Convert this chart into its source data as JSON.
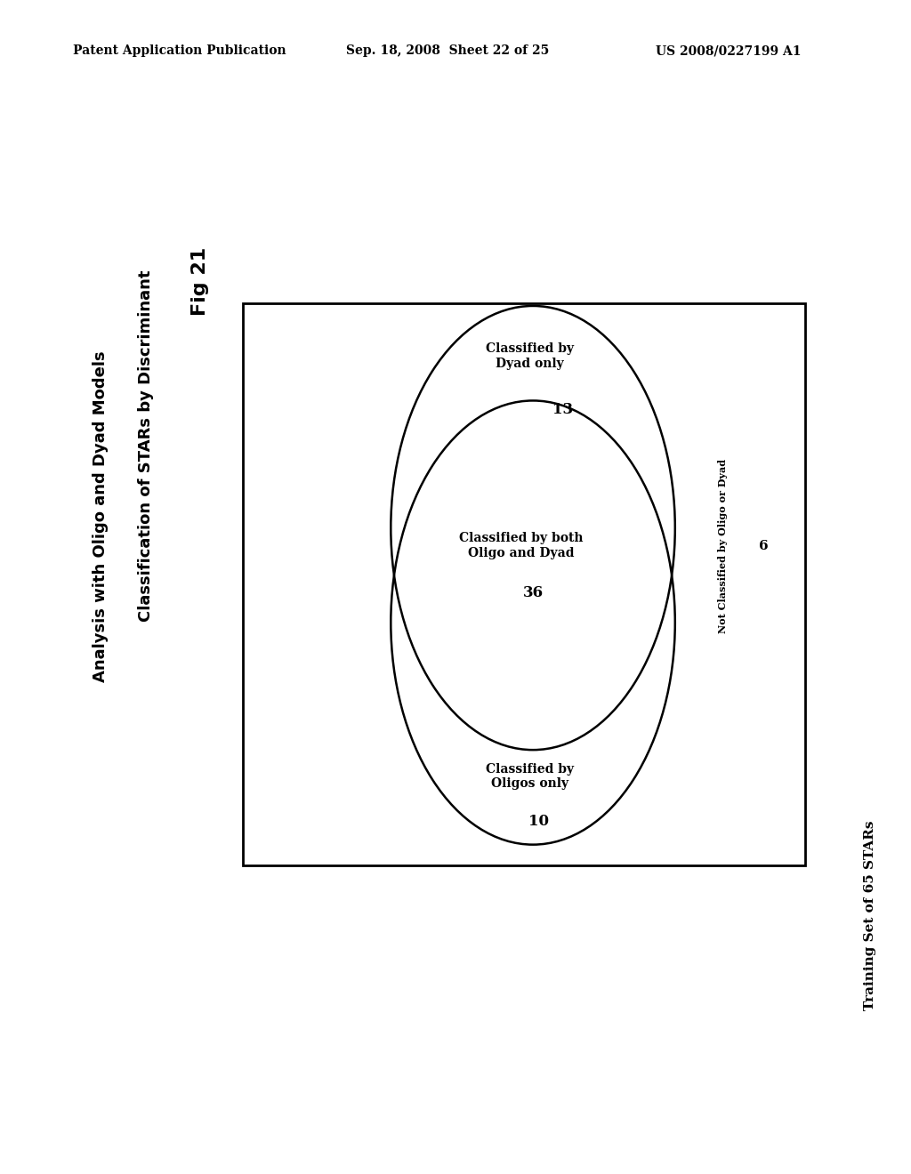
{
  "fig_title": "Fig 21",
  "subtitle_line1": "Classification of STARs by Discriminant",
  "subtitle_line2": "Analysis with Oligo and Dyad Models",
  "header_left": "Patent Application Publication",
  "header_mid": "Sep. 18, 2008  Sheet 22 of 25",
  "header_right": "US 2008/0227199 A1",
  "dyad_label": "Classified by\nDyad only",
  "dyad_value": "13",
  "both_label": "Classified by both\nOligo and Dyad",
  "both_value": "36",
  "oligo_label": "Classified by\nOligos only",
  "oligo_value": "10",
  "not_classified_label": "Not Classified by Oligo or Dyad",
  "not_classified_value": "6",
  "training_label": "Training Set of 65 STARs",
  "background": "#ffffff",
  "ellipse_color": "#000000",
  "text_color": "#000000"
}
